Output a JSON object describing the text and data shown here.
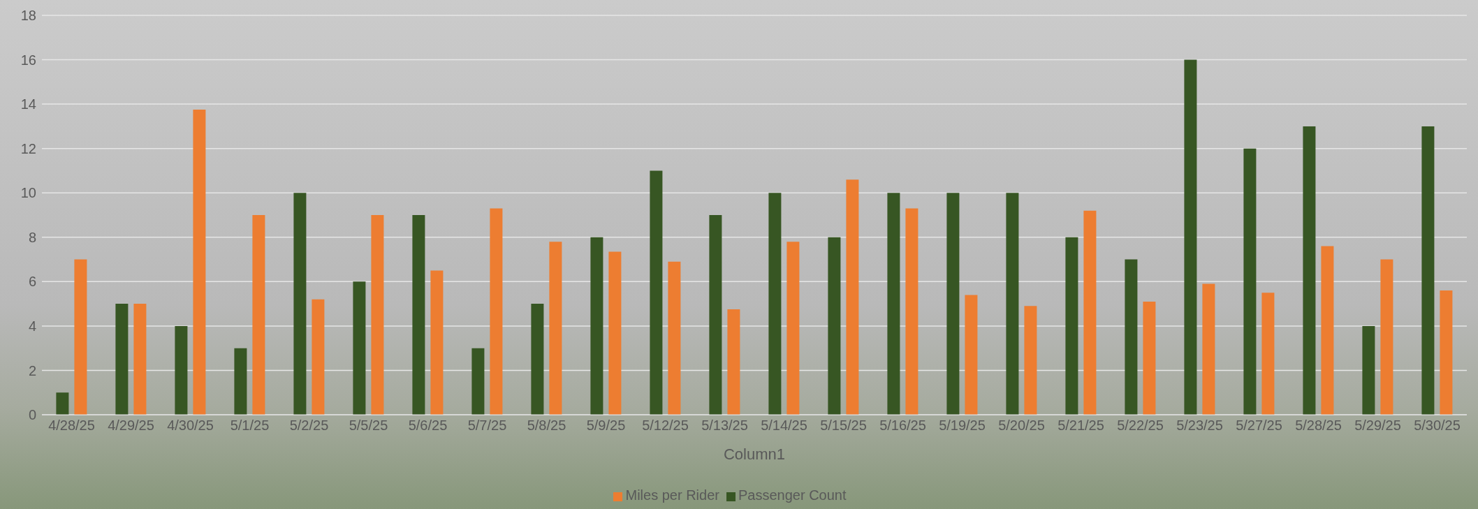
{
  "chart_data": {
    "type": "bar",
    "xlabel": "Column1",
    "categories": [
      "4/28/25",
      "4/29/25",
      "4/30/25",
      "5/1/25",
      "5/2/25",
      "5/5/25",
      "5/6/25",
      "5/7/25",
      "5/8/25",
      "5/9/25",
      "5/12/25",
      "5/13/25",
      "5/14/25",
      "5/15/25",
      "5/16/25",
      "5/19/25",
      "5/20/25",
      "5/21/25",
      "5/22/25",
      "5/23/25",
      "5/27/25",
      "5/28/25",
      "5/29/25",
      "5/30/25"
    ],
    "series": [
      {
        "name": "Passenger Count",
        "color": "#375623",
        "values": [
          1,
          5,
          4,
          3,
          10,
          6,
          9,
          3,
          5,
          8,
          11,
          9,
          10,
          8,
          10,
          10,
          10,
          8,
          7,
          16,
          12,
          13,
          4,
          13
        ]
      },
      {
        "name": "Miles per Rider",
        "color": "#ed7d31",
        "values": [
          7.0,
          5.0,
          13.75,
          9.0,
          5.2,
          9.0,
          6.5,
          9.3,
          7.8,
          7.35,
          6.9,
          4.75,
          7.8,
          10.6,
          9.3,
          5.4,
          4.9,
          9.2,
          5.1,
          5.9,
          5.5,
          7.6,
          7.0,
          5.6
        ]
      }
    ],
    "ylim": [
      0,
      18
    ],
    "yticks": [
      0,
      2,
      4,
      6,
      8,
      10,
      12,
      14,
      16,
      18
    ],
    "grid": "y",
    "legend": "bottom"
  }
}
